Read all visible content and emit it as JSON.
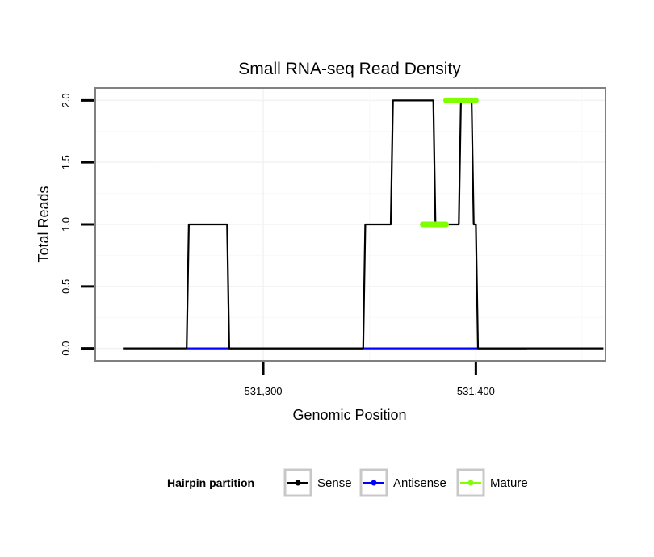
{
  "chart_data": {
    "type": "line",
    "title": "Small RNA-seq Read Density",
    "xlabel": "Genomic Position",
    "ylabel": "Total Reads",
    "xlim": [
      531221,
      531461
    ],
    "ylim": [
      -0.1,
      2.1
    ],
    "xticks": [
      531300,
      531400
    ],
    "xtick_labels": [
      "531,300",
      "531,400"
    ],
    "yticks": [
      0,
      0.5,
      1,
      1.5,
      2
    ],
    "ytick_labels": [
      "0.0",
      "0.5",
      "1.0",
      "1.5",
      "2.0"
    ],
    "grid": true,
    "legend_position": "bottom",
    "legend_title": "Hairpin partition",
    "series": [
      {
        "name": "Sense",
        "color": "#000000",
        "x": [
          531234,
          531264,
          531265,
          531283,
          531284,
          531347,
          531348,
          531360,
          531361,
          531380,
          531381,
          531392,
          531393,
          531398,
          531399,
          531400,
          531401,
          531403,
          531405,
          531423,
          531424,
          531460
        ],
        "y": [
          0,
          0,
          1,
          1,
          0,
          0,
          1,
          1,
          2,
          2,
          1,
          1,
          2,
          2,
          1,
          1,
          0,
          0,
          0,
          0,
          0,
          0
        ]
      },
      {
        "name": "Antisense",
        "color": "#0000ff",
        "x": [
          531264,
          531284,
          531376,
          531424
        ],
        "y": [
          0,
          0,
          0,
          0
        ]
      },
      {
        "name": "Mature",
        "color": "#7fff00",
        "segments": [
          {
            "x": [
              531375,
              531386
            ],
            "y": [
              1,
              1
            ]
          },
          {
            "x": [
              531386,
              531400
            ],
            "y": [
              2,
              2
            ]
          }
        ]
      }
    ]
  }
}
